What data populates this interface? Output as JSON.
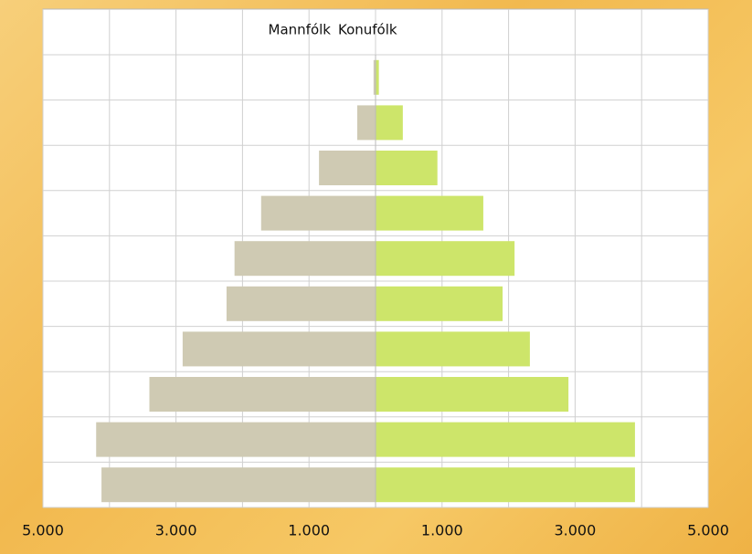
{
  "chart_data": {
    "type": "pyramid",
    "categories": [
      null,
      null,
      null,
      null,
      null,
      null,
      null,
      null,
      null,
      null
    ],
    "series": [
      {
        "name": "Mannfólk",
        "color": "#cfcab3",
        "values": [
          -30,
          -275,
          -850,
          -1720,
          -2120,
          -2240,
          -2900,
          -3400,
          -4200,
          -4120
        ]
      },
      {
        "name": "Konufólk",
        "color": "#cde56a",
        "values": [
          50,
          410,
          930,
          1620,
          2090,
          1910,
          2320,
          2900,
          3900,
          3900
        ]
      }
    ],
    "xlim": [
      -5000,
      5000
    ],
    "xticks": [
      {
        "value": -5000,
        "label": "5.000"
      },
      {
        "value": -3000,
        "label": "3.000"
      },
      {
        "value": -1000,
        "label": "1.000"
      },
      {
        "value": 1000,
        "label": "1.000"
      },
      {
        "value": 3000,
        "label": "3.000"
      },
      {
        "value": 5000,
        "label": "5.000"
      }
    ],
    "xgrid": [
      -5000,
      -4000,
      -3000,
      -2000,
      -1000,
      0,
      1000,
      2000,
      3000,
      4000,
      5000
    ],
    "grid": true,
    "legend": "top"
  }
}
